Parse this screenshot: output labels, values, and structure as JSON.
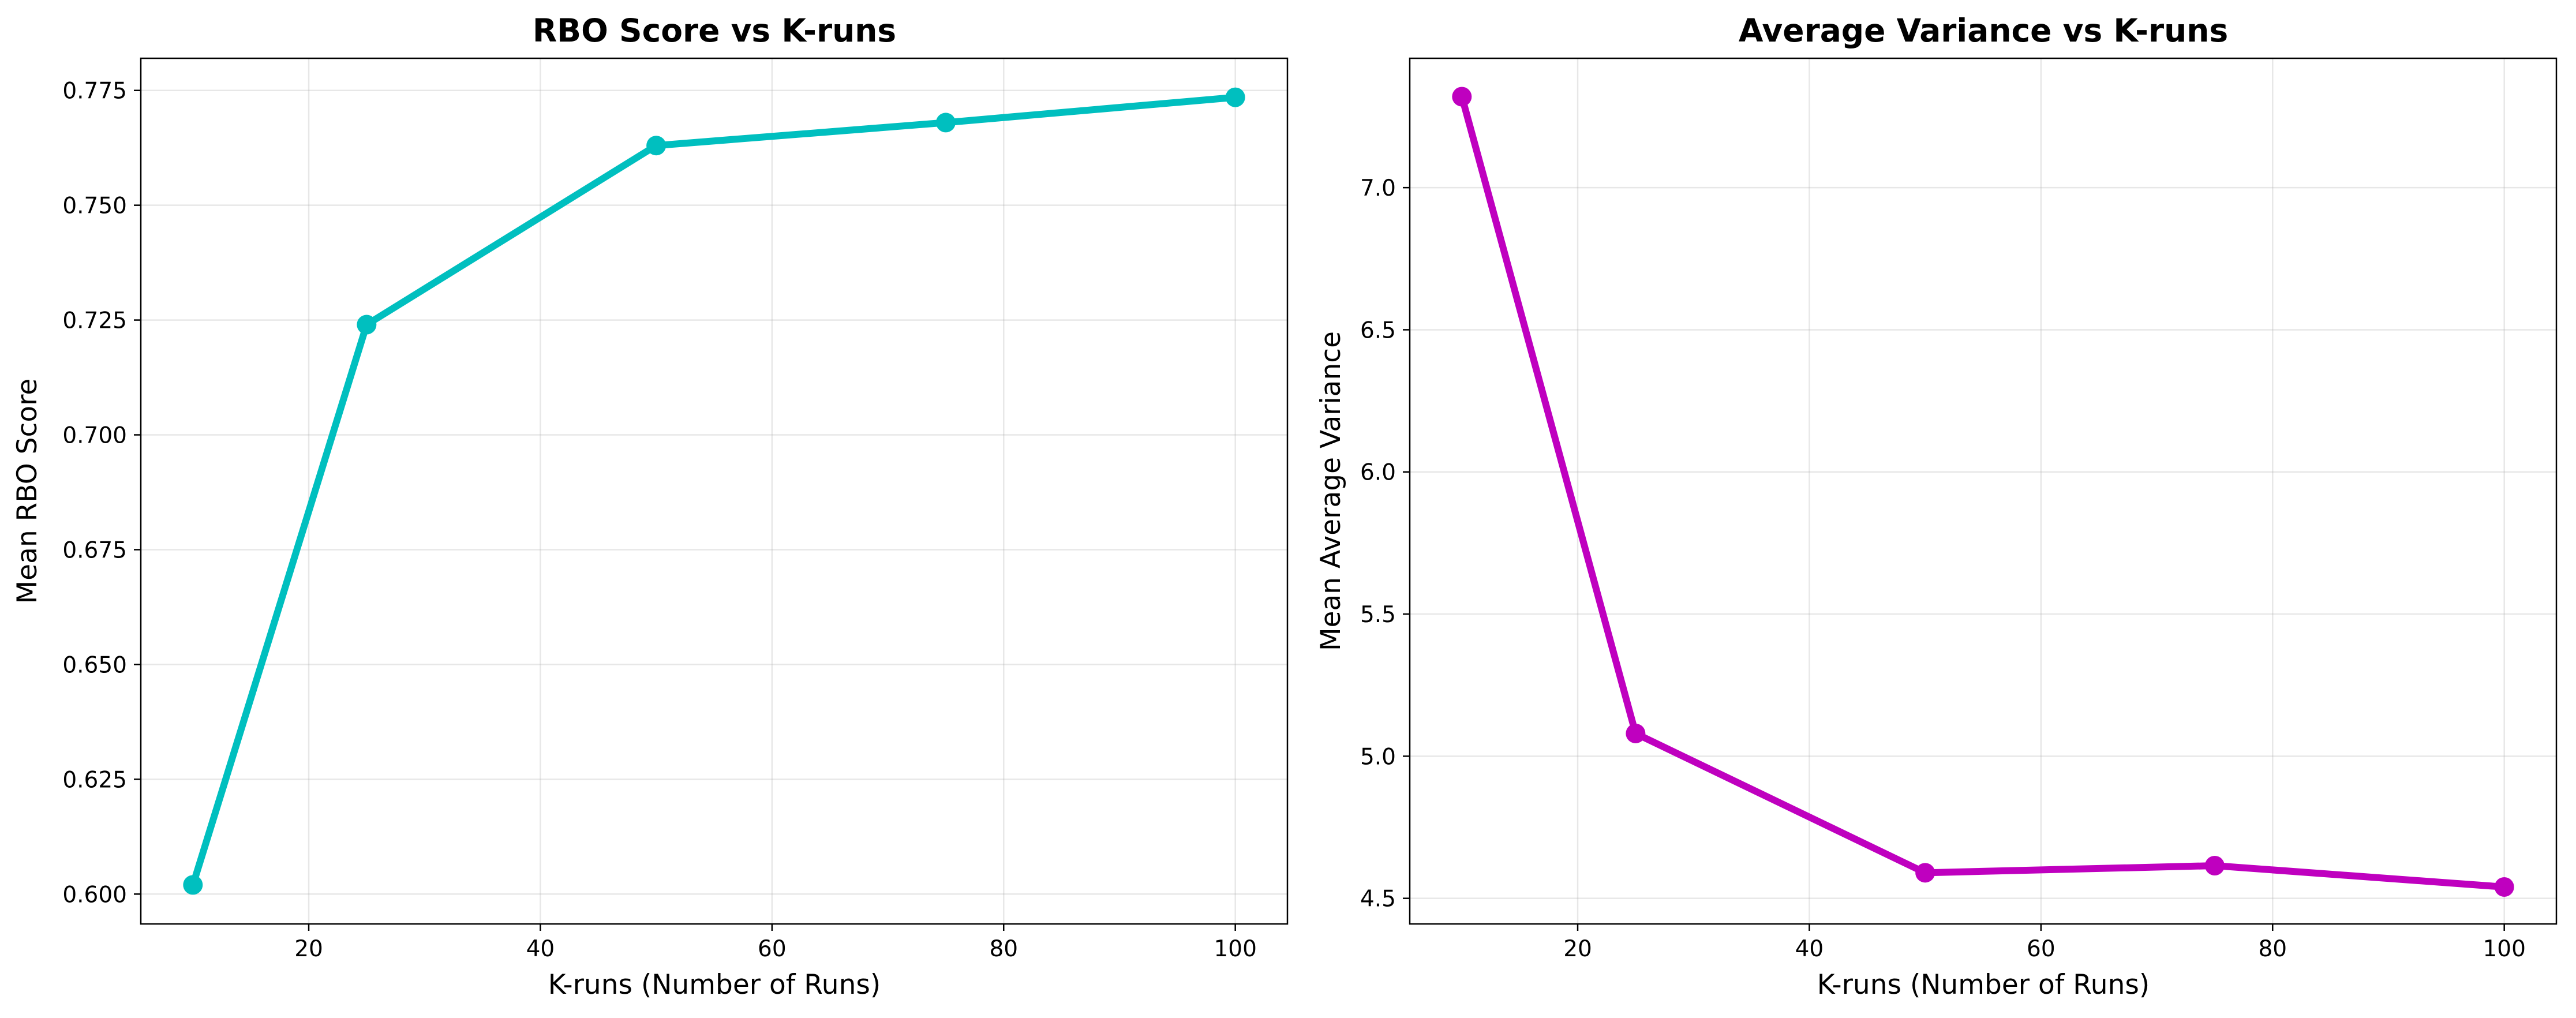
{
  "chart_data": [
    {
      "type": "line",
      "title": "RBO Score vs K-runs",
      "xlabel": "K-runs (Number of Runs)",
      "ylabel": "Mean RBO Score",
      "x": [
        10,
        25,
        50,
        75,
        100
      ],
      "series": [
        {
          "values": [
            0.602,
            0.724,
            0.763,
            0.768,
            0.7735
          ],
          "color": "#00bfbf"
        }
      ],
      "xlim": [
        5.5,
        104.5
      ],
      "ylim": [
        0.5935,
        0.782
      ],
      "xticks": [
        20,
        40,
        60,
        80,
        100
      ],
      "xtick_labels": [
        "20",
        "40",
        "60",
        "80",
        "100"
      ],
      "yticks": [
        0.6,
        0.625,
        0.65,
        0.675,
        0.7,
        0.725,
        0.75,
        0.775
      ],
      "ytick_labels": [
        "0.600",
        "0.625",
        "0.650",
        "0.675",
        "0.700",
        "0.725",
        "0.750",
        "0.775"
      ],
      "grid": true,
      "marker": "circle"
    },
    {
      "type": "line",
      "title": "Average Variance vs K-runs",
      "xlabel": "K-runs (Number of Runs)",
      "ylabel": "Mean Average Variance",
      "x": [
        10,
        25,
        50,
        75,
        100
      ],
      "series": [
        {
          "values": [
            7.32,
            5.08,
            4.59,
            4.615,
            4.54
          ],
          "color": "#bf00bf"
        }
      ],
      "xlim": [
        5.5,
        104.5
      ],
      "ylim": [
        4.41,
        7.455
      ],
      "xticks": [
        20,
        40,
        60,
        80,
        100
      ],
      "xtick_labels": [
        "20",
        "40",
        "60",
        "80",
        "100"
      ],
      "yticks": [
        4.5,
        5.0,
        5.5,
        6.0,
        6.5,
        7.0
      ],
      "ytick_labels": [
        "4.5",
        "5.0",
        "5.5",
        "6.0",
        "6.5",
        "7.0"
      ],
      "grid": true,
      "marker": "circle"
    }
  ]
}
